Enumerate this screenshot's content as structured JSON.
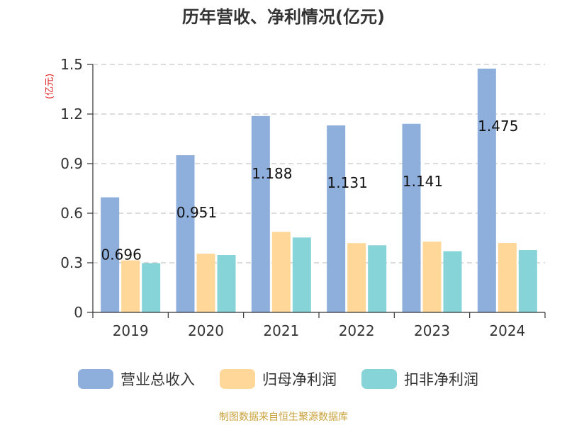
{
  "chart_data": {
    "type": "bar",
    "title": "历年营收、净利情况(亿元)",
    "unit_label": "(亿元)",
    "categories": [
      "2019",
      "2020",
      "2021",
      "2022",
      "2023",
      "2024"
    ],
    "yticks": [
      "0",
      "0.3",
      "0.6",
      "0.9",
      "1.2",
      "1.5"
    ],
    "ylim": [
      0,
      1.5
    ],
    "grid": true,
    "legend_position": "bottom",
    "series": [
      {
        "name": "营业总收入",
        "color": "#8eaedb",
        "values": [
          0.696,
          0.951,
          1.188,
          1.131,
          1.141,
          1.475
        ],
        "labels": [
          "0.696",
          "0.951",
          "1.188",
          "1.131",
          "1.141",
          "1.475"
        ]
      },
      {
        "name": "归母净利润",
        "color": "#ffd899",
        "values": [
          0.315,
          0.355,
          0.487,
          0.419,
          0.428,
          0.42
        ]
      },
      {
        "name": "扣非净利润",
        "color": "#87d4d8",
        "values": [
          0.298,
          0.347,
          0.453,
          0.406,
          0.37,
          0.377
        ]
      }
    ]
  },
  "source": "制图数据来自恒生聚源数据库"
}
